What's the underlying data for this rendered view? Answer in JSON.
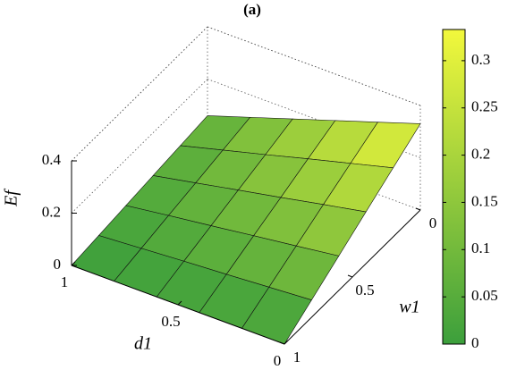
{
  "chart_data": {
    "type": "surface",
    "title": "(a)",
    "x_label": "d1",
    "y_label": "w1",
    "z_label": "Ef",
    "x": [
      0,
      0.2,
      0.4,
      0.6,
      0.8,
      1
    ],
    "y": [
      0,
      0.2,
      0.4,
      0.6,
      0.8,
      1
    ],
    "z": [
      [
        0.33,
        0.276,
        0.222,
        0.168,
        0.114,
        0.06
      ],
      [
        0.264,
        0.221,
        0.178,
        0.134,
        0.091,
        0.048
      ],
      [
        0.198,
        0.166,
        0.133,
        0.101,
        0.068,
        0.036
      ],
      [
        0.132,
        0.11,
        0.089,
        0.067,
        0.046,
        0.024
      ],
      [
        0.066,
        0.055,
        0.044,
        0.034,
        0.023,
        0.012
      ],
      [
        0,
        0,
        0,
        0,
        0,
        0
      ]
    ],
    "xlim": [
      0,
      1
    ],
    "ylim": [
      0,
      1
    ],
    "zlim": [
      0,
      0.4
    ],
    "xticks": [
      0,
      0.5,
      1
    ],
    "yticks": [
      0,
      0.5,
      1
    ],
    "zticks": [
      0,
      0.2,
      0.4
    ],
    "colormap": [
      "#3c9f3c",
      "#f2f83c"
    ],
    "clim": [
      0,
      0.333
    ],
    "colorbar_ticks": [
      0,
      0.05,
      0.1,
      0.15,
      0.2,
      0.25,
      0.3
    ],
    "grid": true
  }
}
